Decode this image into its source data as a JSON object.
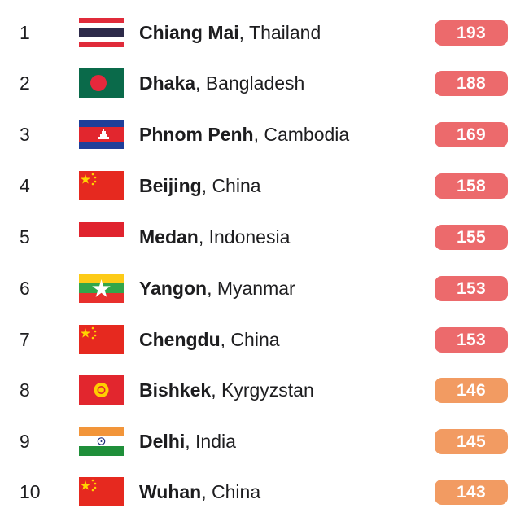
{
  "ranking": {
    "rows": [
      {
        "rank": "1",
        "city": "Chiang Mai",
        "country": ", Thailand",
        "value": "193",
        "flag": "thailand-flag-icon",
        "level": "red"
      },
      {
        "rank": "2",
        "city": "Dhaka",
        "country": ", Bangladesh",
        "value": "188",
        "flag": "bangladesh-flag-icon",
        "level": "red"
      },
      {
        "rank": "3",
        "city": "Phnom Penh",
        "country": ", Cambodia",
        "value": "169",
        "flag": "cambodia-flag-icon",
        "level": "red"
      },
      {
        "rank": "4",
        "city": "Beijing",
        "country": ", China",
        "value": "158",
        "flag": "china-flag-icon",
        "level": "red"
      },
      {
        "rank": "5",
        "city": "Medan",
        "country": ", Indonesia",
        "value": "155",
        "flag": "indonesia-flag-icon",
        "level": "red"
      },
      {
        "rank": "6",
        "city": "Yangon",
        "country": ", Myanmar",
        "value": "153",
        "flag": "myanmar-flag-icon",
        "level": "red"
      },
      {
        "rank": "7",
        "city": "Chengdu",
        "country": ", China",
        "value": "153",
        "flag": "china-flag-icon",
        "level": "red"
      },
      {
        "rank": "8",
        "city": "Bishkek",
        "country": ", Kyrgyzstan",
        "value": "146",
        "flag": "kyrgyzstan-flag-icon",
        "level": "orange"
      },
      {
        "rank": "9",
        "city": "Delhi",
        "country": ", India",
        "value": "145",
        "flag": "india-flag-icon",
        "level": "orange"
      },
      {
        "rank": "10",
        "city": "Wuhan",
        "country": ", China",
        "value": "143",
        "flag": "china-flag-icon",
        "level": "orange"
      }
    ]
  },
  "colors": {
    "badge_red": "#ec6a6c",
    "badge_orange": "#f29b62"
  }
}
